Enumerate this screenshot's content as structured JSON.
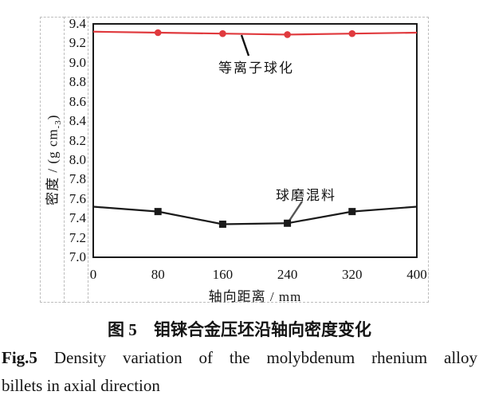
{
  "page": {
    "background": "#ffffff",
    "dash_border_color": "#bdbdbd",
    "text_color": "#141414"
  },
  "figure": {
    "caption_cn_label": "图 5",
    "caption_cn_text": "钼铼合金压坯沿轴向密度变化",
    "caption_en_label": "Fig.5",
    "caption_en_line1": "Density variation of the molybdenum rhenium alloy",
    "caption_en_line2": "billets in axial direction"
  },
  "chart_data": {
    "type": "line",
    "title": "",
    "xlabel": "轴向距离 / mm",
    "ylabel": "密度 / (g cm-3)",
    "ylabel_pre": "密度 / (g cm",
    "ylabel_sub": "-3",
    "ylabel_post": ")",
    "xlim": [
      0,
      400
    ],
    "ylim": [
      7.0,
      9.4
    ],
    "xticks": [
      0,
      80,
      160,
      240,
      320,
      400
    ],
    "yticks": [
      9.4,
      9.2,
      9.0,
      8.8,
      8.6,
      8.4,
      8.2,
      8.0,
      7.8,
      7.6,
      7.4,
      7.2,
      7.0
    ],
    "grid": false,
    "legend_position": "inline-annotations",
    "x": [
      0,
      80,
      160,
      240,
      320,
      400
    ],
    "series": [
      {
        "name": "等离子球化",
        "values": [
          9.32,
          9.31,
          9.3,
          9.29,
          9.3,
          9.31
        ],
        "color": "#e03a3e",
        "marker": "circle",
        "marker_indices": [
          1,
          2,
          3,
          4
        ]
      },
      {
        "name": "球磨混料",
        "values": [
          7.52,
          7.47,
          7.34,
          7.35,
          7.47,
          7.52
        ],
        "color": "#1a1a1a",
        "marker": "square",
        "marker_indices": [
          1,
          2,
          3,
          4
        ]
      }
    ],
    "annotations": [
      {
        "text": "等离子球化",
        "series": 0
      },
      {
        "text": "球磨混料",
        "series": 1
      }
    ]
  }
}
